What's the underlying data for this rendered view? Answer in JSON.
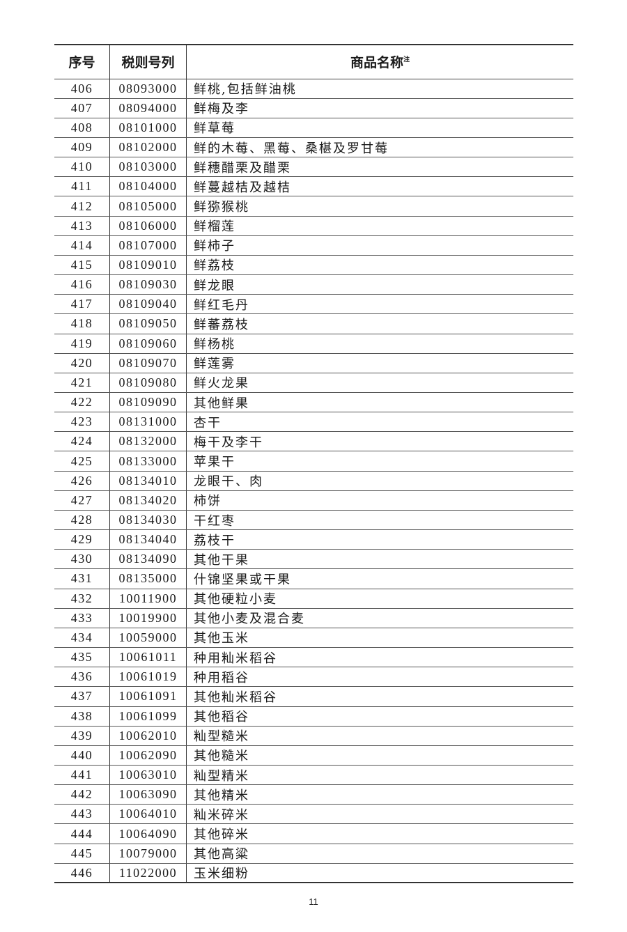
{
  "table": {
    "headers": {
      "index": "序号",
      "code": "税则号列",
      "name": "商品名称",
      "name_note": "注"
    },
    "rows": [
      [
        "406",
        "08093000",
        "鲜桃,包括鲜油桃"
      ],
      [
        "407",
        "08094000",
        "鲜梅及李"
      ],
      [
        "408",
        "08101000",
        "鲜草莓"
      ],
      [
        "409",
        "08102000",
        "鲜的木莓、黑莓、桑椹及罗甘莓"
      ],
      [
        "410",
        "08103000",
        "鲜穗醋栗及醋栗"
      ],
      [
        "411",
        "08104000",
        "鲜蔓越桔及越桔"
      ],
      [
        "412",
        "08105000",
        "鲜猕猴桃"
      ],
      [
        "413",
        "08106000",
        "鲜榴莲"
      ],
      [
        "414",
        "08107000",
        "鲜柿子"
      ],
      [
        "415",
        "08109010",
        "鲜荔枝"
      ],
      [
        "416",
        "08109030",
        "鲜龙眼"
      ],
      [
        "417",
        "08109040",
        "鲜红毛丹"
      ],
      [
        "418",
        "08109050",
        "鲜蕃荔枝"
      ],
      [
        "419",
        "08109060",
        "鲜杨桃"
      ],
      [
        "420",
        "08109070",
        "鲜莲雾"
      ],
      [
        "421",
        "08109080",
        "鲜火龙果"
      ],
      [
        "422",
        "08109090",
        "其他鲜果"
      ],
      [
        "423",
        "08131000",
        "杏干"
      ],
      [
        "424",
        "08132000",
        "梅干及李干"
      ],
      [
        "425",
        "08133000",
        "苹果干"
      ],
      [
        "426",
        "08134010",
        "龙眼干、肉"
      ],
      [
        "427",
        "08134020",
        "柿饼"
      ],
      [
        "428",
        "08134030",
        "干红枣"
      ],
      [
        "429",
        "08134040",
        "荔枝干"
      ],
      [
        "430",
        "08134090",
        "其他干果"
      ],
      [
        "431",
        "08135000",
        "什锦坚果或干果"
      ],
      [
        "432",
        "10011900",
        "其他硬粒小麦"
      ],
      [
        "433",
        "10019900",
        "其他小麦及混合麦"
      ],
      [
        "434",
        "10059000",
        "其他玉米"
      ],
      [
        "435",
        "10061011",
        "种用籼米稻谷"
      ],
      [
        "436",
        "10061019",
        "种用稻谷"
      ],
      [
        "437",
        "10061091",
        "其他籼米稻谷"
      ],
      [
        "438",
        "10061099",
        "其他稻谷"
      ],
      [
        "439",
        "10062010",
        "籼型糙米"
      ],
      [
        "440",
        "10062090",
        "其他糙米"
      ],
      [
        "441",
        "10063010",
        "籼型精米"
      ],
      [
        "442",
        "10063090",
        "其他精米"
      ],
      [
        "443",
        "10064010",
        "籼米碎米"
      ],
      [
        "444",
        "10064090",
        "其他碎米"
      ],
      [
        "445",
        "10079000",
        "其他高粱"
      ],
      [
        "446",
        "11022000",
        "玉米细粉"
      ]
    ]
  },
  "footer": {
    "page_number": "11"
  }
}
